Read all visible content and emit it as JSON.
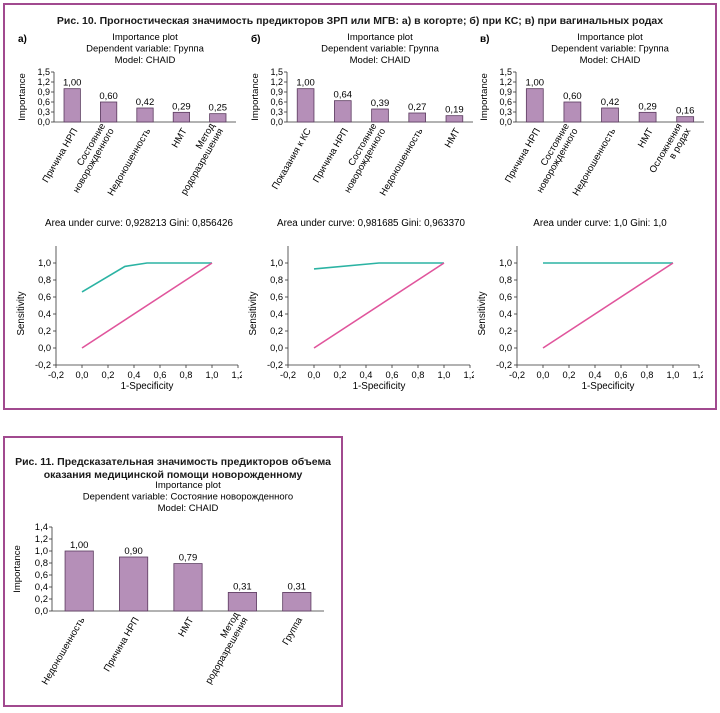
{
  "colors": {
    "frame": "#a14a8f",
    "bar_fill": "#b58fb8",
    "bar_stroke": "#5a3a5e",
    "roc_curve": "#2bb3a3",
    "roc_diag": "#e0559c"
  },
  "figure10": {
    "title": "Рис. 10. Прогностическая значимость предикторов ЗРП или МГВ: а) в когорте; б) при КС; в) при вагинальных родах"
  },
  "figure11": {
    "title_line1": "Рис. 11. Предсказательная значимость предикторов объема",
    "title_line2": "оказания медицинской помощи новорожденному"
  },
  "chart_data": [
    {
      "type": "bar",
      "panel_label": "а)",
      "title_lines": [
        "Importance plot",
        "Dependent variable: Группа",
        "Model: CHAID"
      ],
      "ylabel": "Importance",
      "yticks": [
        "0,0",
        "0,3",
        "0,6",
        "0,9",
        "1,2",
        "1,5"
      ],
      "ylim": [
        0,
        1.5
      ],
      "categories": [
        [
          "Причина НРП"
        ],
        [
          "Состояние",
          "новорожденного"
        ],
        [
          "Недоношенность"
        ],
        [
          "НМТ"
        ],
        [
          "Метод",
          "родоразрешения"
        ]
      ],
      "values": [
        1.0,
        0.6,
        0.42,
        0.29,
        0.25
      ],
      "value_labels": [
        "1,00",
        "0,60",
        "0,42",
        "0,29",
        "0,25"
      ]
    },
    {
      "type": "bar",
      "panel_label": "б)",
      "title_lines": [
        "Importance plot",
        "Dependent variable: Группа",
        "Model: CHAID"
      ],
      "ylabel": "Importance",
      "yticks": [
        "0,0",
        "0,3",
        "0,6",
        "0,9",
        "1,2",
        "1,5"
      ],
      "ylim": [
        0,
        1.5
      ],
      "categories": [
        [
          "Показания к КС"
        ],
        [
          "Причина НРП"
        ],
        [
          "Состояние",
          "новорожденного"
        ],
        [
          "Недоношенность"
        ],
        [
          "НМТ"
        ]
      ],
      "values": [
        1.0,
        0.64,
        0.39,
        0.27,
        0.19
      ],
      "value_labels": [
        "1,00",
        "0,64",
        "0,39",
        "0,27",
        "0,19"
      ]
    },
    {
      "type": "bar",
      "panel_label": "в)",
      "title_lines": [
        "Importance plot",
        "Dependent variable: Группа",
        "Model: CHAID"
      ],
      "ylabel": "Importance",
      "yticks": [
        "0,0",
        "0,3",
        "0,6",
        "0,9",
        "1,2",
        "1,5"
      ],
      "ylim": [
        0,
        1.5
      ],
      "categories": [
        [
          "Причина НРП"
        ],
        [
          "Состояние",
          "новорожденного"
        ],
        [
          "Недоношенность"
        ],
        [
          "НМТ"
        ],
        [
          "Осложнения",
          "в родах"
        ]
      ],
      "values": [
        1.0,
        0.6,
        0.42,
        0.29,
        0.16
      ],
      "value_labels": [
        "1,00",
        "0,60",
        "0,42",
        "0,29",
        "0,16"
      ]
    },
    {
      "type": "line",
      "title": "Area under curve: 0,928213 Gini: 0,856426",
      "xlabel": "1-Specificity",
      "ylabel": "Sensitivity",
      "xlim": [
        -0.2,
        1.2
      ],
      "ylim": [
        -0.2,
        1.2
      ],
      "xticks": [
        "-0,2",
        "0,0",
        "0,2",
        "0,4",
        "0,6",
        "0,8",
        "1,0",
        "1,2"
      ],
      "yticks": [
        "-0,2",
        "0,0",
        "0,2",
        "0,4",
        "0,6",
        "0,8",
        "1,0"
      ],
      "series": [
        {
          "x": [
            0.0,
            0.33,
            0.5,
            1.0
          ],
          "y": [
            0.66,
            0.96,
            1.0,
            1.0
          ]
        },
        {
          "x": [
            0.0,
            1.0
          ],
          "y": [
            0.0,
            1.0
          ]
        }
      ]
    },
    {
      "type": "line",
      "title": "Area under curve: 0,981685 Gini: 0,963370",
      "xlabel": "1-Specificity",
      "ylabel": "Sensitivity",
      "xlim": [
        -0.2,
        1.2
      ],
      "ylim": [
        -0.2,
        1.2
      ],
      "xticks": [
        "-0,2",
        "0,0",
        "0,2",
        "0,4",
        "0,6",
        "0,8",
        "1,0",
        "1,2"
      ],
      "yticks": [
        "-0,2",
        "0,0",
        "0,2",
        "0,4",
        "0,6",
        "0,8",
        "1,0"
      ],
      "series": [
        {
          "x": [
            0.0,
            0.5,
            1.0
          ],
          "y": [
            0.93,
            1.0,
            1.0
          ]
        },
        {
          "x": [
            0.0,
            1.0
          ],
          "y": [
            0.0,
            1.0
          ]
        }
      ]
    },
    {
      "type": "line",
      "title": "Area under curve: 1,0 Gini: 1,0",
      "xlabel": "1-Specificity",
      "ylabel": "Sensitivity",
      "xlim": [
        -0.2,
        1.2
      ],
      "ylim": [
        -0.2,
        1.2
      ],
      "xticks": [
        "-0,2",
        "0,0",
        "0,2",
        "0,4",
        "0,6",
        "0,8",
        "1,0",
        "1,2"
      ],
      "yticks": [
        "-0,2",
        "0,0",
        "0,2",
        "0,4",
        "0,6",
        "0,8",
        "1,0"
      ],
      "series": [
        {
          "x": [
            0.0,
            1.0
          ],
          "y": [
            1.0,
            1.0
          ]
        },
        {
          "x": [
            0.0,
            1.0
          ],
          "y": [
            0.0,
            1.0
          ]
        }
      ]
    },
    {
      "type": "bar",
      "panel_label": "",
      "title_lines": [
        "Importance plot",
        "Dependent variable: Состояние новорожденного",
        "Model: CHAID"
      ],
      "ylabel": "Importance",
      "yticks": [
        "0,0",
        "0,2",
        "0,4",
        "0,6",
        "0,8",
        "1,0",
        "1,2",
        "1,4"
      ],
      "ylim": [
        0,
        1.4
      ],
      "categories": [
        [
          "Недоношенность"
        ],
        [
          "Причина НРП"
        ],
        [
          "НМТ"
        ],
        [
          "Метод",
          "родоразрешения"
        ],
        [
          "Группа"
        ]
      ],
      "values": [
        1.0,
        0.9,
        0.79,
        0.31,
        0.31
      ],
      "value_labels": [
        "1,00",
        "0,90",
        "0,79",
        "0,31",
        "0,31"
      ]
    }
  ]
}
